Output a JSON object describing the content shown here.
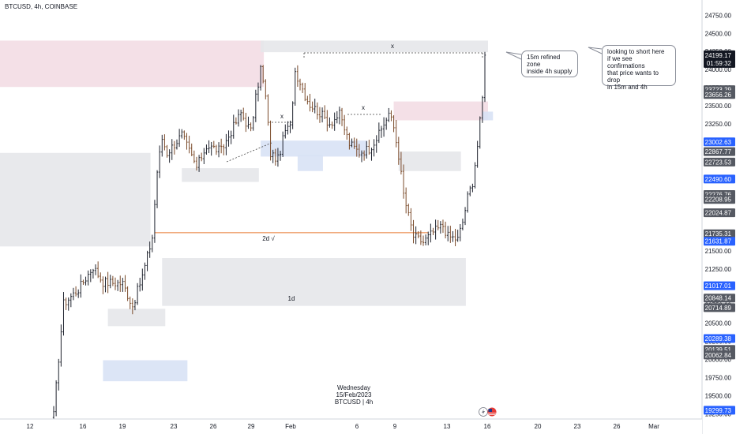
{
  "header": {
    "symbol_title": "BTCUSD, 4h, COINBASE"
  },
  "colors": {
    "up": "#26a69a",
    "down": "#ef5350",
    "bar": "#1e222d",
    "brown": "#7a4a2a",
    "supply_zone": "#f3dde4",
    "demand_zone": "#d8e2f5",
    "grey_zone": "#e6e7ea",
    "orange_line": "#e8762c",
    "badge_blue": "#2962ff",
    "badge_dark": "#555962",
    "badge_black": "#131722"
  },
  "annotations": {
    "callout_zone": "15m refined zone\ninside 4h supply",
    "callout_plan": "looking to short here\nif we see confirmations\nthat price wants to drop\nin 15m and 4h",
    "level_2d": "2d √",
    "label_1d": "1d",
    "x_mark_top": "x",
    "x_mark_left": "x",
    "x_mark_mid": "x"
  },
  "footer": {
    "weekday": "Wednesday",
    "date": "15/Feb/2023",
    "symbol_tf": "BTCUSD | 4h"
  },
  "chart_data": {
    "type": "candlestick",
    "symbol": "BTCUSD",
    "timeframe": "4h",
    "exchange": "COINBASE",
    "x_tick_labels": [
      "12",
      "16",
      "19",
      "23",
      "26",
      "29",
      "Feb",
      "6",
      "9",
      "13",
      "16",
      "20",
      "23",
      "26",
      "Mar"
    ],
    "y_ticks": [
      24750,
      24500,
      24250,
      24000,
      23750,
      23500,
      23250,
      23000,
      22750,
      22500,
      22250,
      22000,
      21750,
      21500,
      21250,
      21000,
      20750,
      20500,
      20250,
      20000,
      19750,
      19500,
      19250
    ],
    "ylim": [
      19190,
      24960
    ],
    "last_price": "24199.17",
    "countdown": "01:59:32",
    "price_badges": [
      {
        "text": "23723.29",
        "value": 23723.29,
        "style": "grey"
      },
      {
        "text": "23656.26",
        "value": 23656.26,
        "style": "grey"
      },
      {
        "text": "23002.63",
        "value": 23002.63,
        "style": "blue"
      },
      {
        "text": "22867.77",
        "value": 22867.77,
        "style": "grey"
      },
      {
        "text": "22723.53",
        "value": 22723.53,
        "style": "grey"
      },
      {
        "text": "22490.60",
        "value": 22490.6,
        "style": "blue"
      },
      {
        "text": "22276.76",
        "value": 22276.76,
        "style": "grey"
      },
      {
        "text": "22208.95",
        "value": 22208.95,
        "style": "grey"
      },
      {
        "text": "22024.87",
        "value": 22024.87,
        "style": "grey"
      },
      {
        "text": "21735.31",
        "value": 21735.31,
        "style": "grey"
      },
      {
        "text": "21631.87",
        "value": 21631.87,
        "style": "blue"
      },
      {
        "text": "21017.01",
        "value": 21017.01,
        "style": "blue"
      },
      {
        "text": "20848.14",
        "value": 20848.14,
        "style": "grey"
      },
      {
        "text": "20714.89",
        "value": 20714.89,
        "style": "grey"
      },
      {
        "text": "20289.38",
        "value": 20289.38,
        "style": "blue"
      },
      {
        "text": "20139.51",
        "value": 20139.51,
        "style": "grey"
      },
      {
        "text": "20062.84",
        "value": 20062.84,
        "style": "grey"
      },
      {
        "text": "19299.73",
        "value": 19299.73,
        "style": "blue"
      }
    ],
    "anchors": [
      [
        0,
        19230
      ],
      [
        2,
        20020
      ],
      [
        4,
        20770
      ],
      [
        10,
        20970
      ],
      [
        16,
        21280
      ],
      [
        20,
        21070
      ],
      [
        28,
        21050
      ],
      [
        32,
        20740
      ],
      [
        36,
        21150
      ],
      [
        40,
        21690
      ],
      [
        42,
        22600
      ],
      [
        44,
        23050
      ],
      [
        46,
        22850
      ],
      [
        52,
        23100
      ],
      [
        58,
        22650
      ],
      [
        62,
        22950
      ],
      [
        68,
        22880
      ],
      [
        72,
        23150
      ],
      [
        76,
        23400
      ],
      [
        80,
        23150
      ],
      [
        82,
        23600
      ],
      [
        84,
        24020
      ],
      [
        86,
        23620
      ],
      [
        88,
        22840
      ],
      [
        91,
        22760
      ],
      [
        94,
        23160
      ],
      [
        96,
        23200
      ],
      [
        98,
        23980
      ],
      [
        100,
        23830
      ],
      [
        102,
        23650
      ],
      [
        104,
        23520
      ],
      [
        108,
        23400
      ],
      [
        112,
        23260
      ],
      [
        116,
        23380
      ],
      [
        120,
        22980
      ],
      [
        124,
        22860
      ],
      [
        128,
        22910
      ],
      [
        132,
        23100
      ],
      [
        136,
        23400
      ],
      [
        138,
        23200
      ],
      [
        140,
        22820
      ],
      [
        142,
        22280
      ],
      [
        144,
        21980
      ],
      [
        146,
        21700
      ],
      [
        150,
        21620
      ],
      [
        154,
        21760
      ],
      [
        158,
        21850
      ],
      [
        160,
        21700
      ],
      [
        164,
        21660
      ],
      [
        166,
        21900
      ],
      [
        168,
        22240
      ],
      [
        170,
        22450
      ],
      [
        172,
        22950
      ],
      [
        174,
        23600
      ],
      [
        175,
        24250
      ]
    ],
    "zones": [
      {
        "kind": "supply",
        "from_bar": 0,
        "to_bar": 84,
        "price_top": 24400,
        "price_bottom": 23760
      },
      {
        "kind": "grey",
        "from_bar": 84,
        "to_bar": 175,
        "price_top": 24400,
        "price_bottom": 24240
      },
      {
        "kind": "supply",
        "from_bar": 138,
        "to_bar": 175,
        "price_top": 23560,
        "price_bottom": 23300
      },
      {
        "kind": "demand",
        "from_bar": 174,
        "to_bar": 177,
        "price_top": 23420,
        "price_bottom": 23300
      },
      {
        "kind": "demand",
        "from_bar": 84,
        "to_bar": 126,
        "price_top": 23020,
        "price_bottom": 22800
      },
      {
        "kind": "demand",
        "from_bar": 99,
        "to_bar": 108,
        "price_top": 22820,
        "price_bottom": 22600
      },
      {
        "kind": "grey",
        "from_bar": 140,
        "to_bar": 164,
        "price_top": 22870,
        "price_bottom": 22600
      },
      {
        "kind": "grey",
        "from_bar": 52,
        "to_bar": 82,
        "price_top": 22640,
        "price_bottom": 22450
      },
      {
        "kind": "grey",
        "from_bar": 0,
        "to_bar": 38,
        "price_top": 22850,
        "price_bottom": 21560
      },
      {
        "kind": "grey",
        "from_bar": 44,
        "to_bar": 166,
        "price_top": 21400,
        "price_bottom": 20740
      },
      {
        "kind": "grey",
        "from_bar": 22,
        "to_bar": 44,
        "price_top": 20700,
        "price_bottom": 20460
      },
      {
        "kind": "demand",
        "from_bar": 20,
        "to_bar": 53,
        "price_top": 19990,
        "price_bottom": 19700
      }
    ],
    "level_2d_price": 21750,
    "level_2d_from_bar": 41,
    "level_2d_to_bar": 152
  }
}
